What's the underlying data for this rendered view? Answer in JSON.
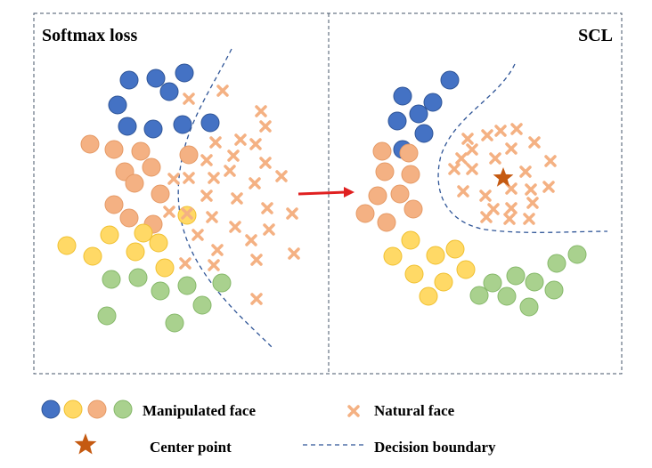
{
  "panels": [
    {
      "title": "Softmax loss"
    },
    {
      "title": "SCL"
    }
  ],
  "legend": {
    "manipulated": "Manipulated face",
    "natural": "Natural face",
    "center": "Center point",
    "boundary": "Decision boundary"
  }
}
